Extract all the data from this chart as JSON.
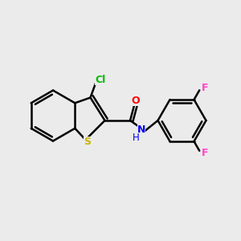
{
  "background_color": "#ebebeb",
  "bond_color": "#000000",
  "bond_width": 1.8,
  "atom_colors": {
    "S": "#c8b400",
    "Cl": "#00bb00",
    "O": "#ff0000",
    "N": "#0000ee",
    "F": "#ff44cc",
    "C": "#000000"
  },
  "figsize": [
    3.0,
    3.0
  ],
  "dpi": 100
}
